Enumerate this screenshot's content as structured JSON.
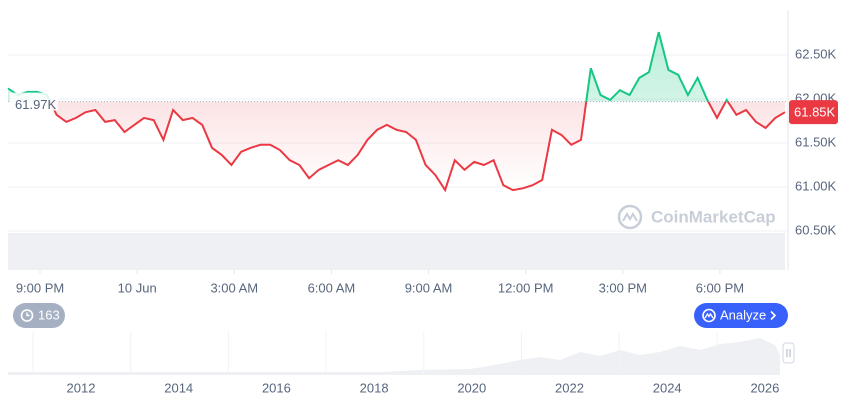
{
  "chart_data": {
    "type": "line",
    "values": [
      62120,
      62045,
      62080,
      62080,
      62045,
      61820,
      61740,
      61785,
      61850,
      61875,
      61740,
      61760,
      61625,
      61705,
      61785,
      61760,
      61535,
      61875,
      61760,
      61785,
      61705,
      61445,
      61365,
      61250,
      61400,
      61445,
      61480,
      61480,
      61420,
      61305,
      61250,
      61100,
      61195,
      61250,
      61305,
      61250,
      61365,
      61535,
      61650,
      61705,
      61650,
      61625,
      61535,
      61250,
      61135,
      60965,
      61305,
      61195,
      61285,
      61250,
      61305,
      61020,
      60965,
      60985,
      61020,
      61080,
      61650,
      61590,
      61480,
      61535,
      62350,
      62045,
      61990,
      62100,
      62045,
      62240,
      62305,
      62760,
      62330,
      62275,
      62045,
      62240,
      61990,
      61785,
      61990,
      61820,
      61875,
      61740,
      61670,
      61785,
      61850
    ],
    "up_color": "#16c784",
    "down_color": "#ea3943",
    "baseline": {
      "value": 61970,
      "label": "61.97K"
    },
    "last": {
      "value": 61850,
      "label": "61.85K"
    },
    "xlim": [
      0,
      80
    ],
    "xticks": [
      {
        "value": 3.3,
        "label": "9:00 PM"
      },
      {
        "value": 13.3,
        "label": "10 Jun"
      },
      {
        "value": 23.3,
        "label": "3:00 AM"
      },
      {
        "value": 33.3,
        "label": "6:00 AM"
      },
      {
        "value": 43.3,
        "label": "9:00 AM"
      },
      {
        "value": 53.3,
        "label": "12:00 PM"
      },
      {
        "value": 63.3,
        "label": "3:00 PM"
      },
      {
        "value": 73.3,
        "label": "6:00 PM"
      }
    ],
    "ylim": [
      60057,
      63011
    ],
    "yticks": [
      {
        "value": 60500,
        "label": "60.50K"
      },
      {
        "value": 61000,
        "label": "61.00K"
      },
      {
        "value": 61500,
        "label": "61.50K"
      },
      {
        "value": 62000,
        "label": "62.00K"
      },
      {
        "value": 62500,
        "label": "62.50K"
      }
    ],
    "grid": true
  },
  "watermark": "CoinMarketCap",
  "history_badge": "163",
  "analyze_button": "Analyze",
  "navigator": {
    "years": [
      "2012",
      "2014",
      "2016",
      "2018",
      "2020",
      "2022",
      "2024",
      "2026"
    ]
  }
}
